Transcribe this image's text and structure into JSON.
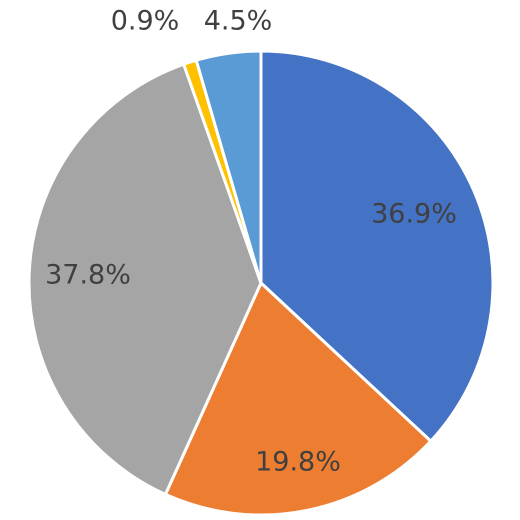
{
  "chart_data": {
    "type": "pie",
    "start_angle_deg": 0,
    "direction": "clockwise",
    "slices": [
      {
        "label": "36.9%",
        "value": 36.9,
        "color": "#4472C4"
      },
      {
        "label": "19.8%",
        "value": 19.8,
        "color": "#ED7D31"
      },
      {
        "label": "37.8%",
        "value": 37.8,
        "color": "#A5A5A5"
      },
      {
        "label": "0.9%",
        "value": 0.9,
        "color": "#FFC000"
      },
      {
        "label": "4.5%",
        "value": 4.5,
        "color": "#5B9BD5"
      }
    ],
    "legend": "none",
    "title": ""
  }
}
